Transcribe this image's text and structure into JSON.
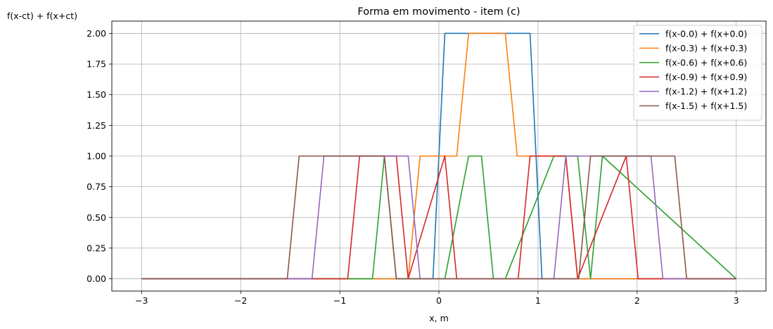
{
  "chart_data": {
    "type": "line",
    "title": "Forma em movimento - item (c)",
    "xlabel": "x, m",
    "ylabel": "f(x-ct) + f(x+ct)",
    "xlim": [
      -3.3,
      3.3
    ],
    "ylim": [
      -0.1,
      2.1
    ],
    "xticks": [
      -3,
      -2,
      -1,
      0,
      1,
      2,
      3
    ],
    "xtick_labels": [
      "−3",
      "−2",
      "−1",
      "0",
      "1",
      "2",
      "3"
    ],
    "yticks": [
      0,
      0.25,
      0.5,
      0.75,
      1,
      1.25,
      1.5,
      1.75,
      2
    ],
    "ytick_labels": [
      "0.00",
      "0.25",
      "0.50",
      "0.75",
      "1.00",
      "1.25",
      "1.50",
      "1.75",
      "2.00"
    ],
    "grid": true,
    "legend_position": "top-right",
    "series": [
      {
        "name": "f(x-0.0) + f(x+0.0)",
        "color": "#1f77b4",
        "x": [
          -3,
          -0.06,
          0.06,
          0.92,
          1.04,
          3
        ],
        "y": [
          0,
          0,
          2,
          2,
          0,
          0
        ]
      },
      {
        "name": "f(x-0.3) + f(x+0.3)",
        "color": "#ff7f0e",
        "x": [
          -3,
          -0.31,
          -0.19,
          0.18,
          0.3,
          0.67,
          0.79,
          1.28,
          1.4,
          3
        ],
        "y": [
          0,
          0,
          1,
          1,
          2,
          2,
          1,
          1,
          0,
          0
        ]
      },
      {
        "name": "f(x-0.6) + f(x+0.6)",
        "color": "#2ca02c",
        "x": [
          -3,
          -0.67,
          -0.55,
          -0.43,
          0.06,
          0.3,
          0.43,
          0.55,
          0.67,
          1.16,
          1.4,
          1.53,
          1.65,
          3
        ],
        "y": [
          0,
          0,
          1,
          0,
          0,
          1,
          1,
          0,
          0,
          1,
          1,
          0,
          1,
          0
        ]
      },
      {
        "name": "f(x-0.9) + f(x+0.9)",
        "color": "#d62728",
        "x": [
          -3,
          -0.92,
          -0.8,
          -0.43,
          -0.31,
          0.06,
          0.18,
          0.8,
          0.92,
          1.28,
          1.4,
          1.89,
          2.01,
          3
        ],
        "y": [
          0,
          0,
          1,
          1,
          0,
          1,
          0,
          0,
          1,
          1,
          0,
          1,
          0,
          0
        ]
      },
      {
        "name": "f(x-1.2) + f(x+1.2)",
        "color": "#9467bd",
        "x": [
          -3,
          -1.28,
          -1.16,
          -0.31,
          -0.19,
          1.16,
          1.28,
          2.14,
          2.26,
          3
        ],
        "y": [
          0,
          0,
          1,
          1,
          0,
          0,
          1,
          1,
          0,
          0
        ]
      },
      {
        "name": "f(x-1.5) + f(x+1.5)",
        "color": "#8c564b",
        "x": [
          -3,
          -1.53,
          -1.41,
          -0.55,
          -0.43,
          1.41,
          1.53,
          2.38,
          2.5,
          3
        ],
        "y": [
          0,
          0,
          1,
          1,
          0,
          0,
          1,
          1,
          0,
          0
        ]
      }
    ]
  }
}
